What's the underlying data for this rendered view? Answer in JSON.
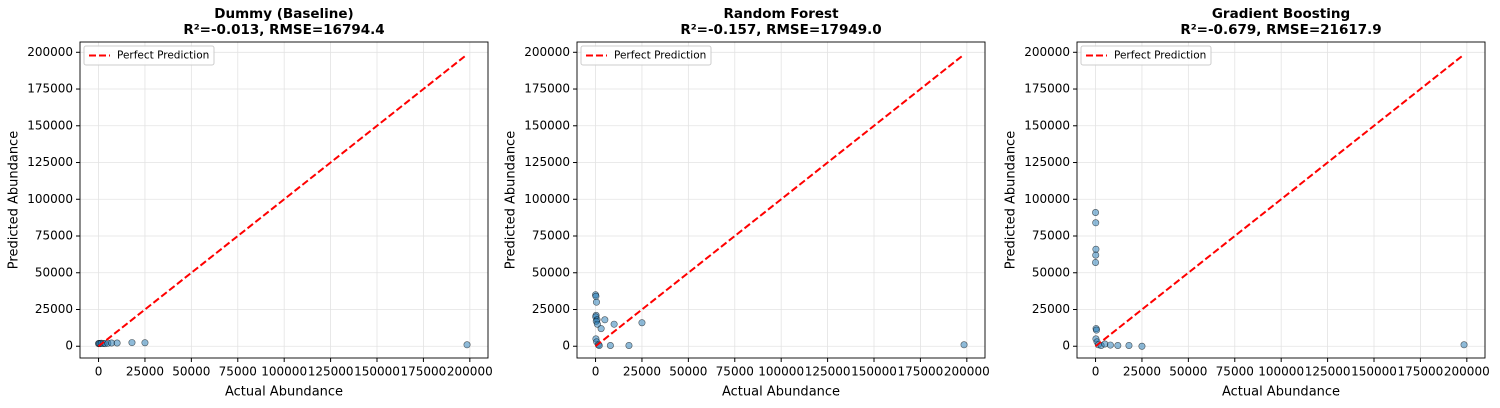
{
  "chart_data": [
    {
      "type": "scatter",
      "title": "Dummy (Baseline)",
      "subtitle": "R²=-0.013, RMSE=16794.4",
      "xlabel": "Actual Abundance",
      "ylabel": "Predicted Abundance",
      "xlim": [
        -9990,
        209790
      ],
      "ylim": [
        -8000,
        207000
      ],
      "xticks": [
        0,
        25000,
        50000,
        75000,
        100000,
        125000,
        150000,
        175000,
        200000
      ],
      "yticks": [
        0,
        25000,
        50000,
        75000,
        100000,
        125000,
        150000,
        175000,
        200000
      ],
      "grid": true,
      "legend": "upper left",
      "points": {
        "color": "#1f77b4",
        "x": [
          0,
          300,
          800,
          1500,
          2500,
          3500,
          5000,
          7000,
          10000,
          18000,
          25000,
          198500
        ],
        "y": [
          1800,
          1900,
          1800,
          2000,
          1900,
          1800,
          2000,
          2200,
          2200,
          2500,
          2400,
          1000
        ]
      },
      "series": [
        {
          "name": "Perfect Prediction",
          "color": "#ff0000",
          "x": [
            0,
            198500
          ],
          "y": [
            0,
            198500
          ]
        }
      ]
    },
    {
      "type": "scatter",
      "title": "Random Forest",
      "subtitle": "R²=-0.157, RMSE=17949.0",
      "xlabel": "Actual Abundance",
      "ylabel": "Predicted Abundance",
      "xlim": [
        -9990,
        209790
      ],
      "ylim": [
        -8000,
        207000
      ],
      "xticks": [
        0,
        25000,
        50000,
        75000,
        100000,
        125000,
        150000,
        175000,
        200000
      ],
      "yticks": [
        0,
        25000,
        50000,
        75000,
        100000,
        125000,
        150000,
        175000,
        200000
      ],
      "grid": true,
      "legend": "upper left",
      "points": {
        "color": "#1f77b4",
        "x": [
          0,
          200,
          500,
          300,
          100,
          800,
          400,
          1000,
          200,
          600,
          1500,
          2000,
          3000,
          5000,
          10000,
          25000,
          8000,
          18000,
          198500
        ],
        "y": [
          35000,
          34000,
          30000,
          21000,
          20000,
          18000,
          17000,
          15000,
          5000,
          3000,
          1000,
          500,
          12000,
          18000,
          15000,
          16000,
          500,
          500,
          1000
        ]
      },
      "series": [
        {
          "name": "Perfect Prediction",
          "color": "#ff0000",
          "x": [
            0,
            198500
          ],
          "y": [
            0,
            198500
          ]
        }
      ]
    },
    {
      "type": "scatter",
      "title": "Gradient Boosting",
      "subtitle": "R²=-0.679, RMSE=21617.9",
      "xlabel": "Actual Abundance",
      "ylabel": "Predicted Abundance",
      "xlim": [
        -9990,
        209790
      ],
      "ylim": [
        -8000,
        207000
      ],
      "xticks": [
        0,
        25000,
        50000,
        75000,
        100000,
        125000,
        150000,
        175000,
        200000
      ],
      "yticks": [
        0,
        25000,
        50000,
        75000,
        100000,
        125000,
        150000,
        175000,
        200000
      ],
      "grid": true,
      "legend": "upper left",
      "points": {
        "color": "#1f77b4",
        "x": [
          0,
          100,
          200,
          100,
          0,
          300,
          500,
          200,
          800,
          1500,
          3000,
          5000,
          8000,
          12000,
          18000,
          25000,
          198500
        ],
        "y": [
          91000,
          84000,
          66000,
          62000,
          57000,
          12000,
          11000,
          5000,
          3000,
          1000,
          500,
          1500,
          800,
          500,
          500,
          0,
          1000
        ]
      },
      "series": [
        {
          "name": "Perfect Prediction",
          "color": "#ff0000",
          "x": [
            0,
            198500
          ],
          "y": [
            0,
            198500
          ]
        }
      ]
    }
  ]
}
